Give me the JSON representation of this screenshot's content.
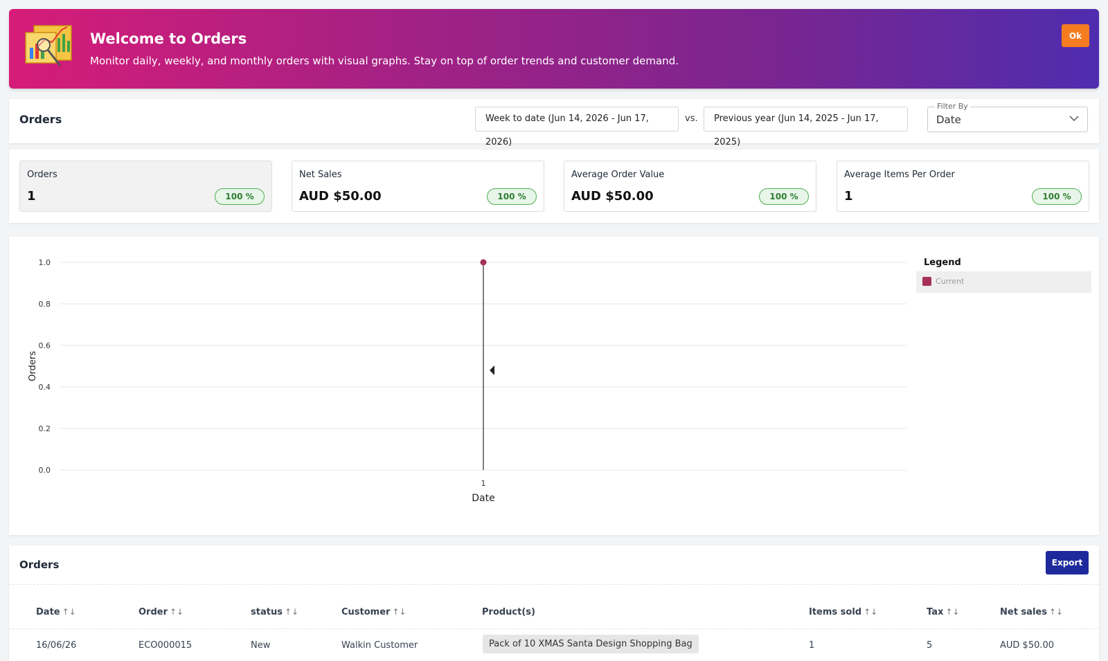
{
  "banner": {
    "title": "Welcome to Orders",
    "subtitle": "Monitor daily, weekly, and monthly orders with visual graphs. Stay on top of order trends and customer demand.",
    "ok_label": "Ok"
  },
  "header": {
    "title": "Orders",
    "current_range": "Week to date (Jun 14, 2026 - Jun 17, 2026)",
    "vs_label": "vs.",
    "previous_range": "Previous year (Jun 14, 2025 - Jun 17, 2025)",
    "filter_label": "Filter By",
    "filter_value": "Date"
  },
  "stats": [
    {
      "label": "Orders",
      "value": "1",
      "change": "100 %"
    },
    {
      "label": "Net Sales",
      "value": "AUD $50.00",
      "change": "100 %"
    },
    {
      "label": "Average Order Value",
      "value": "AUD $50.00",
      "change": "100 %"
    },
    {
      "label": "Average Items Per Order",
      "value": "1",
      "change": "100 %"
    }
  ],
  "legend": {
    "title": "Legend",
    "items": [
      "Current"
    ]
  },
  "colors": {
    "series_current": "#a5305a",
    "badge_green": "#2e7d32",
    "export_button": "#1e2a9b",
    "ok_button": "#f57c1f"
  },
  "chart_data": {
    "type": "line",
    "x": [
      "1"
    ],
    "series": [
      {
        "name": "Current",
        "values": [
          1
        ]
      }
    ],
    "xlabel": "Date",
    "ylabel": "Orders",
    "ylim": [
      0,
      1
    ],
    "yticks": [
      "0.0",
      "0.2",
      "0.4",
      "0.6",
      "0.8",
      "1.0"
    ],
    "grid": true,
    "legend_position": "right"
  },
  "table": {
    "title": "Orders",
    "export_label": "Export",
    "sort_icon": "↑↓",
    "columns": [
      "Date",
      "Order",
      "status",
      "Customer",
      "Product(s)",
      "Items sold",
      "Tax",
      "Net sales"
    ],
    "rows": [
      {
        "date": "16/06/26",
        "order": "ECO000015",
        "status": "New",
        "customer": "Walkin Customer",
        "product": "Pack of 10 XMAS Santa Design Shopping Bag",
        "items_sold": "1",
        "tax": "5",
        "net_sales": "AUD $50.00"
      }
    ]
  }
}
